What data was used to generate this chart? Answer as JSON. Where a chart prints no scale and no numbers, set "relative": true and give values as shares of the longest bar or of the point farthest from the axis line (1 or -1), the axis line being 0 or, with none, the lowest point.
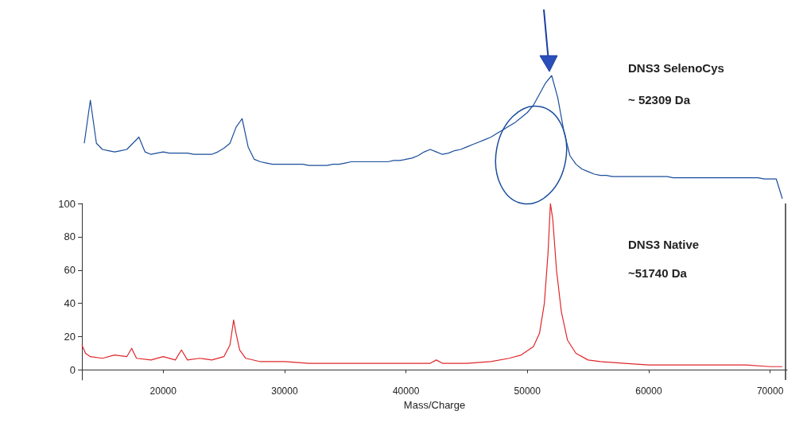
{
  "chart_data": [
    {
      "type": "line",
      "relative": true,
      "marker": "none",
      "legend": false,
      "grid": false,
      "categories": [
        null,
        null,
        null,
        null,
        null,
        null,
        null,
        null,
        null,
        null,
        null,
        null,
        null,
        null,
        null,
        null,
        null,
        null,
        null,
        null,
        null,
        null,
        null,
        null,
        null,
        null,
        null,
        null,
        null,
        null,
        null,
        null,
        null,
        null,
        null,
        null,
        null,
        null,
        null,
        null,
        null,
        null,
        null,
        null,
        null,
        null,
        null,
        null,
        null,
        null,
        null,
        null,
        null,
        null,
        null,
        null,
        null,
        null,
        null,
        null,
        null,
        null,
        null,
        null,
        null,
        null,
        null,
        null,
        null,
        null,
        null,
        null,
        null,
        null,
        null,
        null,
        null,
        null,
        null,
        null,
        null,
        null,
        null,
        null,
        null,
        null,
        null,
        null,
        null,
        null,
        null,
        null,
        null,
        null,
        null,
        null,
        null,
        null,
        null,
        null,
        null,
        null,
        null,
        null,
        null,
        null,
        null,
        null,
        null,
        null,
        null,
        null,
        null,
        null,
        null,
        null
      ],
      "series": [
        {
          "name": "DNS3 SelenoCys",
          "color": "#1a4d9c",
          "values": [
            0.45,
            0.8,
            0.45,
            0.4,
            0.39,
            0.38,
            0.39,
            0.4,
            0.45,
            0.5,
            0.38,
            0.36,
            0.37,
            0.38,
            0.37,
            0.37,
            0.37,
            0.37,
            0.36,
            0.36,
            0.36,
            0.36,
            0.38,
            0.41,
            0.45,
            0.58,
            0.65,
            0.42,
            0.32,
            0.3,
            0.29,
            0.28,
            0.28,
            0.28,
            0.28,
            0.28,
            0.28,
            0.27,
            0.27,
            0.27,
            0.27,
            0.28,
            0.28,
            0.29,
            0.3,
            0.3,
            0.3,
            0.3,
            0.3,
            0.3,
            0.3,
            0.31,
            0.31,
            0.32,
            0.33,
            0.35,
            0.38,
            0.4,
            0.38,
            0.36,
            0.37,
            0.39,
            0.4,
            0.42,
            0.44,
            0.46,
            0.48,
            0.5,
            0.53,
            0.56,
            0.59,
            0.62,
            0.66,
            0.7,
            0.76,
            0.85,
            0.94,
            1,
            0.82,
            0.55,
            0.35,
            0.28,
            0.24,
            0.22,
            0.2,
            0.19,
            0.19,
            0.18,
            0.18,
            0.18,
            0.18,
            0.18,
            0.18,
            0.18,
            0.18,
            0.18,
            0.18,
            0.17,
            0.17,
            0.17,
            0.17,
            0.17,
            0.17,
            0.17,
            0.17,
            0.17,
            0.17,
            0.17,
            0.17,
            0.17,
            0.17,
            0.17,
            0.16,
            0.16,
            0.16,
            0
          ]
        }
      ],
      "annotations": [
        "~ 52309 Da"
      ]
    },
    {
      "type": "line",
      "xlabel": "Mass/Charge",
      "marker": "none",
      "legend": false,
      "grid": false,
      "xlim": [
        13300,
        71400
      ],
      "xticks": [
        20000,
        30000,
        40000,
        50000,
        60000,
        70000
      ],
      "ylim": [
        -6,
        100
      ],
      "yticks": [
        0,
        20,
        40,
        60,
        80,
        100
      ],
      "series": [
        {
          "name": "DNS3 Native",
          "color": "#e0262b",
          "x": [
            13300,
            13600,
            14000,
            15000,
            16000,
            17000,
            17400,
            17800,
            19000,
            20000,
            21000,
            21500,
            22000,
            23000,
            24000,
            25000,
            25500,
            25800,
            26000,
            26300,
            26800,
            28000,
            30000,
            32000,
            34000,
            36000,
            38000,
            40000,
            42000,
            42500,
            43000,
            45000,
            47000,
            48500,
            49500,
            50500,
            51000,
            51400,
            51700,
            51900,
            52100,
            52400,
            52800,
            53300,
            54000,
            55000,
            56000,
            58000,
            60000,
            62000,
            65000,
            68000,
            70000,
            71000
          ],
          "values": [
            15,
            10,
            8,
            7,
            9,
            8,
            13,
            7,
            6,
            8,
            6,
            12,
            6,
            7,
            6,
            8,
            15,
            30,
            22,
            12,
            7,
            5,
            5,
            4,
            4,
            4,
            4,
            4,
            4,
            6,
            4,
            4,
            5,
            7,
            9,
            14,
            22,
            40,
            70,
            100,
            90,
            60,
            35,
            18,
            10,
            6,
            5,
            4,
            3,
            3,
            3,
            3,
            2,
            2
          ]
        }
      ],
      "annotations": [
        "~51740 Da"
      ]
    }
  ]
}
